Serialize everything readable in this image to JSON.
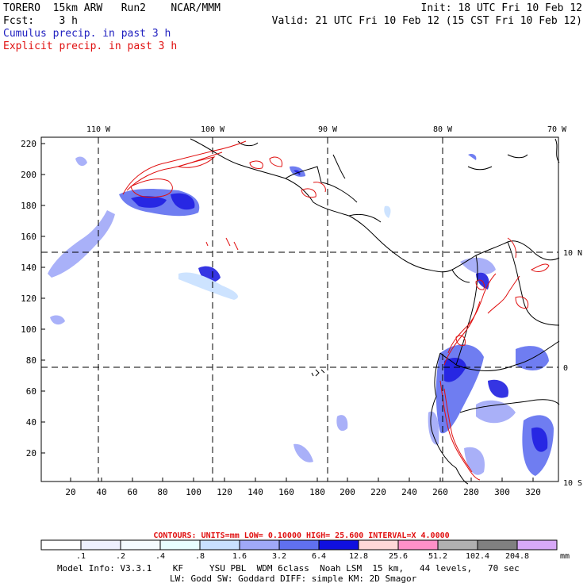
{
  "header": {
    "left_line1": "TORERO  15km ARW   Run2    NCAR/MMM",
    "left_line2": "Fcst:    3 h",
    "right_line1": "Init: 18 UTC Fri 10 Feb 12",
    "right_line2": "Valid: 21 UTC Fri 10 Feb 12 (15 CST Fri 10 Feb 12)",
    "cumulus_label": "Cumulus precip. in past 3 h",
    "explicit_label": "Explicit precip. in past 3 h"
  },
  "map": {
    "lon_labels": [
      "110 W",
      "100 W",
      "90 W",
      "80 W",
      "70 W"
    ],
    "lat_labels": [
      "10 N",
      "0",
      "10 S"
    ],
    "y_ticks": [
      "220",
      "200",
      "180",
      "160",
      "140",
      "120",
      "100",
      "80",
      "60",
      "40",
      "20"
    ],
    "x_ticks": [
      "20",
      "40",
      "60",
      "80",
      "100",
      "120",
      "140",
      "160",
      "180",
      "200",
      "220",
      "240",
      "260",
      "280",
      "300",
      "320"
    ],
    "colors": {
      "cumulus": "#2020e0",
      "explicit": "#e01010",
      "land": "#000000"
    }
  },
  "contours_line": {
    "label": "CONTOURS:  UNITS=mm  LOW= 0.10000     HIGH=  25.600     INTERVAL=X  4.0000"
  },
  "colorbar": {
    "labels": [
      ".1",
      ".2",
      ".4",
      ".8",
      "1.6",
      "3.2",
      "6.4",
      "12.8",
      "25.6",
      "51.2",
      "102.4",
      "204.8"
    ],
    "unit": "mm",
    "colors": [
      "#ffffff",
      "#eef0ff",
      "#f4fbff",
      "#e8ffff",
      "#c8e0ff",
      "#a0a8f8",
      "#6070f0",
      "#1010e0",
      "#ffd8d8",
      "#ff90c8",
      "#b0b0b0",
      "#808080",
      "#d8a8f8"
    ]
  },
  "footer": {
    "line1": "Model Info: V3.3.1    KF     YSU PBL  WDM 6class  Noah LSM  15 km,   44 levels,   70 sec",
    "line2": "LW: Godd SW: Goddard DIFF: simple KM: 2D Smagor"
  }
}
